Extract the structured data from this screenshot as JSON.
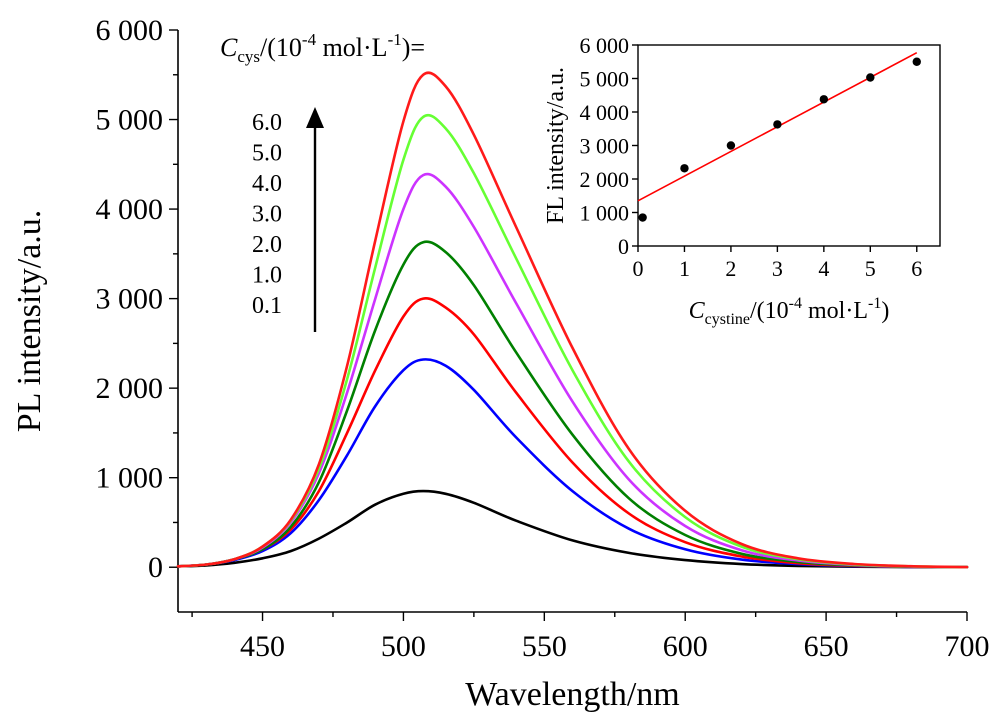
{
  "chart_data": [
    {
      "type": "line",
      "xlabel": "Wavelength/nm",
      "ylabel": "PL intensity/a.u.",
      "xlim": [
        420,
        700
      ],
      "ylim": [
        -500,
        6000
      ],
      "xticks": [
        450,
        500,
        550,
        600,
        650,
        700
      ],
      "xtick_labels": [
        "450",
        "500",
        "550",
        "600",
        "650",
        "700"
      ],
      "yticks": [
        0,
        1000,
        2000,
        3000,
        4000,
        5000,
        6000
      ],
      "ytick_labels": [
        "0",
        "1 000",
        "2 000",
        "3 000",
        "4 000",
        "5 000",
        "6 000"
      ],
      "x": [
        420,
        430,
        440,
        450,
        460,
        470,
        480,
        490,
        500,
        507,
        515,
        525,
        540,
        560,
        580,
        600,
        620,
        640,
        660,
        680,
        700
      ],
      "series": [
        {
          "color": "#000000",
          "values": [
            10,
            20,
            50,
            100,
            180,
            320,
            500,
            700,
            820,
            850,
            820,
            720,
            520,
            300,
            160,
            80,
            35,
            15,
            6,
            2,
            0
          ]
        },
        {
          "color": "#0000ff",
          "values": [
            10,
            30,
            80,
            180,
            380,
            750,
            1250,
            1800,
            2200,
            2320,
            2250,
            1980,
            1450,
            850,
            430,
            200,
            85,
            35,
            12,
            4,
            1
          ]
        },
        {
          "color": "#ff0000",
          "values": [
            10,
            30,
            90,
            200,
            420,
            850,
            1500,
            2200,
            2800,
            3000,
            2900,
            2600,
            1950,
            1170,
            600,
            280,
            120,
            45,
            16,
            5,
            1
          ]
        },
        {
          "color": "#008000",
          "values": [
            10,
            30,
            90,
            200,
            450,
            950,
            1750,
            2650,
            3380,
            3630,
            3520,
            3150,
            2400,
            1480,
            770,
            360,
            150,
            60,
            20,
            6,
            1
          ]
        },
        {
          "color": "#cc33ff",
          "values": [
            10,
            30,
            90,
            220,
            500,
            1050,
            1950,
            3000,
            4000,
            4380,
            4250,
            3800,
            2950,
            1850,
            980,
            460,
            190,
            75,
            26,
            8,
            2
          ]
        },
        {
          "color": "#66ff33",
          "values": [
            10,
            30,
            90,
            230,
            520,
            1100,
            2100,
            3350,
            4550,
            5030,
            4900,
            4400,
            3450,
            2200,
            1180,
            560,
            230,
            90,
            32,
            10,
            2
          ]
        },
        {
          "color": "#ff1a1a",
          "values": [
            10,
            30,
            90,
            230,
            530,
            1150,
            2250,
            3650,
            4980,
            5500,
            5370,
            4830,
            3800,
            2450,
            1320,
            630,
            260,
            100,
            36,
            11,
            2
          ]
        }
      ]
    },
    {
      "type": "scatter",
      "xlabel": "C",
      "xlabel_sub": "cystine",
      "xlabel_tail": "/(10",
      "xlabel_sup": "-4",
      "xlabel_end": " mol·L",
      "xlabel_sup2": "-1",
      "xlabel_close": ")",
      "ylabel": "FL intensity/a.u.",
      "xlim": [
        0,
        6.5
      ],
      "ylim": [
        0,
        6000
      ],
      "xticks": [
        0,
        1,
        2,
        3,
        4,
        5,
        6
      ],
      "xtick_labels": [
        "0",
        "1",
        "2",
        "3",
        "4",
        "5",
        "6"
      ],
      "yticks": [
        0,
        1000,
        2000,
        3000,
        4000,
        5000,
        6000
      ],
      "ytick_labels": [
        "0",
        "1 000",
        "2 000",
        "3 000",
        "4 000",
        "5 000",
        "6 000"
      ],
      "points": {
        "x": [
          0.1,
          1,
          2,
          3,
          4,
          5,
          6
        ],
        "y": [
          850,
          2320,
          3000,
          3630,
          4380,
          5030,
          5500
        ]
      },
      "fit_line": {
        "x": [
          0,
          6
        ],
        "y": [
          1350,
          5770
        ],
        "color": "#ff0000"
      }
    }
  ],
  "legend": {
    "title_c": "C",
    "title_sub": "cys",
    "title_mid": "/(10",
    "title_sup": "-4",
    "title_mid2": " mol·L",
    "title_sup2": "-1",
    "title_end": ")=",
    "concentrations": [
      "6.0",
      "5.0",
      "4.0",
      "3.0",
      "2.0",
      "1.0",
      "0.1"
    ]
  }
}
